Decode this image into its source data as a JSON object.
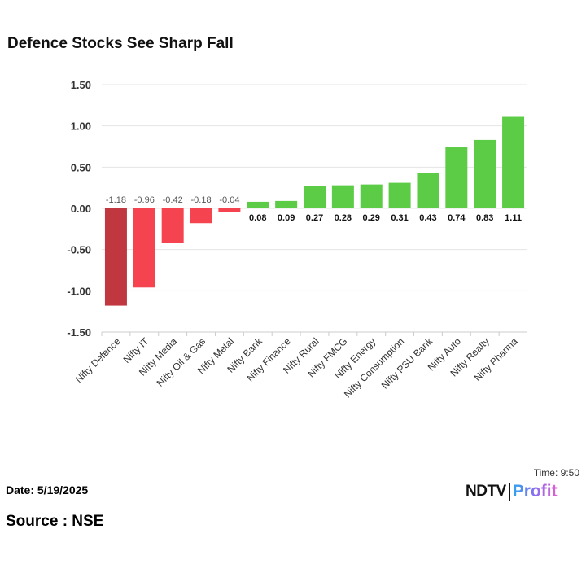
{
  "title": "Defence Stocks See Sharp Fall",
  "footer": {
    "date": "Date: 5/19/2025",
    "source": "Source : NSE",
    "time": "Time: 9:50",
    "logo_main": "NDTV",
    "logo_sub": "Profit"
  },
  "colors": {
    "highlight": "#c0373f",
    "negative": "#f5444f",
    "positive": "#5ccc47"
  },
  "chart_data": {
    "type": "bar",
    "title": "Defence Stocks See Sharp Fall",
    "categories": [
      "Nifty Defence",
      "Nifty IT",
      "Nifty Media",
      "Nifty Oil & Gas",
      "Nifty Metal",
      "Nifty Bank",
      "Nifty Finance",
      "Nifty Rural",
      "Nifty FMCG",
      "Nifty Energy",
      "Nifty Consumption",
      "Nifty PSU Bank",
      "Nifty Auto",
      "Nifty Realty",
      "Nifty Pharma"
    ],
    "values": [
      -1.18,
      -0.96,
      -0.42,
      -0.18,
      -0.04,
      0.08,
      0.09,
      0.27,
      0.28,
      0.29,
      0.31,
      0.43,
      0.74,
      0.83,
      1.11
    ],
    "labels": [
      "-1.18",
      "-0.96",
      "-0.42",
      "-0.18",
      "-0.04",
      "0.08",
      "0.09",
      "0.27",
      "0.28",
      "0.29",
      "0.31",
      "0.43",
      "0.74",
      "0.83",
      "1.11"
    ],
    "yticks": [
      "1.50",
      "1.00",
      "0.50",
      "0.00",
      "-0.50",
      "-1.00",
      "-1.50"
    ],
    "ylim": [
      -1.5,
      1.5
    ],
    "grid": true,
    "xlabel": "",
    "ylabel": ""
  }
}
